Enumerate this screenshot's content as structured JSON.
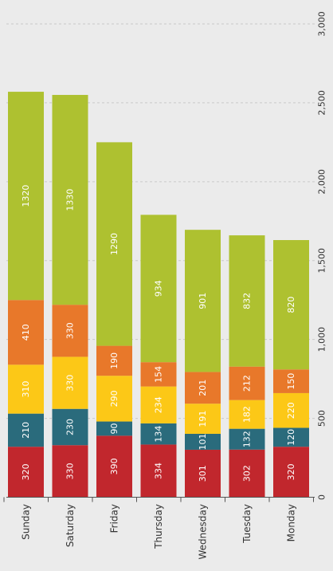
{
  "chart_data": {
    "type": "bar",
    "orientation": "horizontal",
    "stacked": true,
    "categories": [
      "Sunday",
      "Saturday",
      "Friday",
      "Thursday",
      "Wednesday",
      "Tuesday",
      "Monday"
    ],
    "series": [
      {
        "color": "#c1272d",
        "values": [
          320,
          330,
          390,
          334,
          301,
          302,
          320
        ]
      },
      {
        "color": "#2a6b7c",
        "values": [
          210,
          230,
          90,
          134,
          101,
          132,
          120
        ]
      },
      {
        "color": "#fcc817",
        "values": [
          310,
          330,
          290,
          234,
          191,
          182,
          220
        ]
      },
      {
        "color": "#e8782a",
        "values": [
          410,
          330,
          190,
          154,
          201,
          212,
          150
        ]
      },
      {
        "color": "#aec130",
        "values": [
          1320,
          1330,
          1290,
          934,
          901,
          832,
          820
        ]
      }
    ],
    "labels": [
      [
        "320",
        "210",
        "310",
        "410",
        "1320"
      ],
      [
        "330",
        "230",
        "330",
        "330",
        "1330"
      ],
      [
        "390",
        "90",
        "290",
        "190",
        "1290"
      ],
      [
        "334",
        "134",
        "234",
        "154",
        "934"
      ],
      [
        "301",
        "101",
        "191",
        "201",
        "901"
      ],
      [
        "302",
        "132",
        "182",
        "212",
        "832"
      ],
      [
        "320",
        "120",
        "220",
        "150",
        "820"
      ]
    ],
    "xlim": [
      0,
      3000
    ],
    "ticks": [
      0,
      500,
      1000,
      1500,
      2000,
      2500,
      3000
    ],
    "tick_labels": [
      "0",
      "500",
      "1,000",
      "1,500",
      "2,000",
      "2,500",
      "3,000"
    ],
    "grid": true,
    "title": "",
    "xlabel": "",
    "ylabel": ""
  }
}
